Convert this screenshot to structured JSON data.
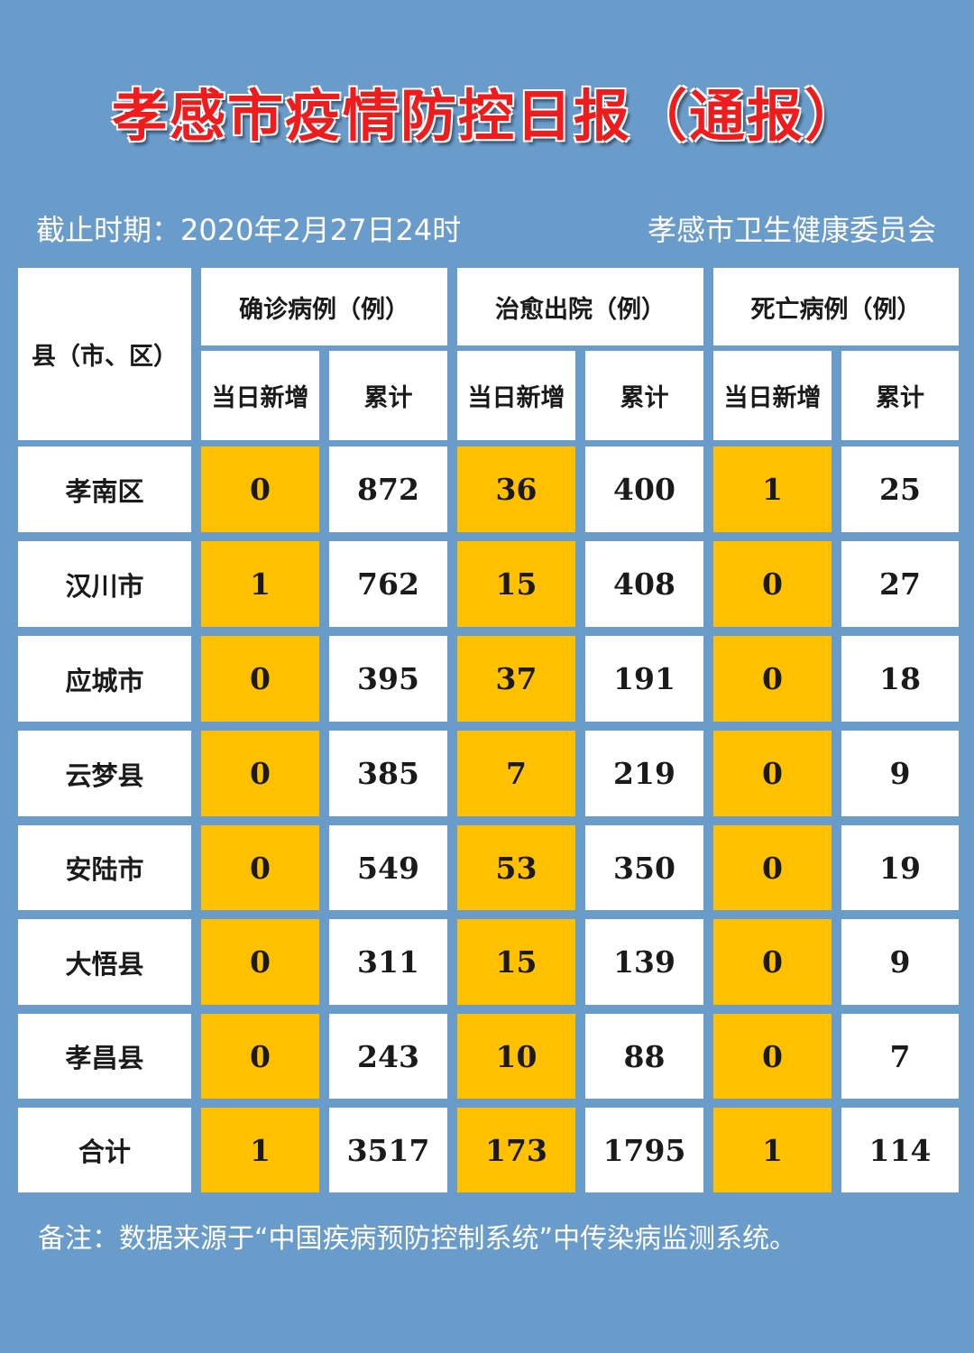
{
  "title": "孝感市疫情防控日报（通报）",
  "date_label": "截止时期：2020年2月27日24时",
  "issuer": "孝感市卫生健康委员会",
  "table": {
    "region_header": "县（市、区）",
    "group_headers": [
      "确诊病例（例）",
      "治愈出院（例）",
      "死亡病例（例）"
    ],
    "sub_headers": [
      "当日新增",
      "累计",
      "当日新增",
      "累计",
      "当日新增",
      "累计"
    ],
    "rows": [
      {
        "name": "孝南区",
        "values": [
          "0",
          "872",
          "36",
          "400",
          "1",
          "25"
        ]
      },
      {
        "name": "汉川市",
        "values": [
          "1",
          "762",
          "15",
          "408",
          "0",
          "27"
        ]
      },
      {
        "name": "应城市",
        "values": [
          "0",
          "395",
          "37",
          "191",
          "0",
          "18"
        ]
      },
      {
        "name": "云梦县",
        "values": [
          "0",
          "385",
          "7",
          "219",
          "0",
          "9"
        ]
      },
      {
        "name": "安陆市",
        "values": [
          "0",
          "549",
          "53",
          "350",
          "0",
          "19"
        ]
      },
      {
        "name": "大悟县",
        "values": [
          "0",
          "311",
          "15",
          "139",
          "0",
          "9"
        ]
      },
      {
        "name": "孝昌县",
        "values": [
          "0",
          "243",
          "10",
          "88",
          "0",
          "7"
        ]
      },
      {
        "name": "合计",
        "values": [
          "1",
          "3517",
          "173",
          "1795",
          "1",
          "114"
        ]
      }
    ]
  },
  "colors": {
    "background": "#6a9ccb",
    "highlight": "#ffc000",
    "title": "#ee1c1c"
  },
  "note": "备注：数据来源于“中国疾病预防控制系统”中传染病监测系统。"
}
